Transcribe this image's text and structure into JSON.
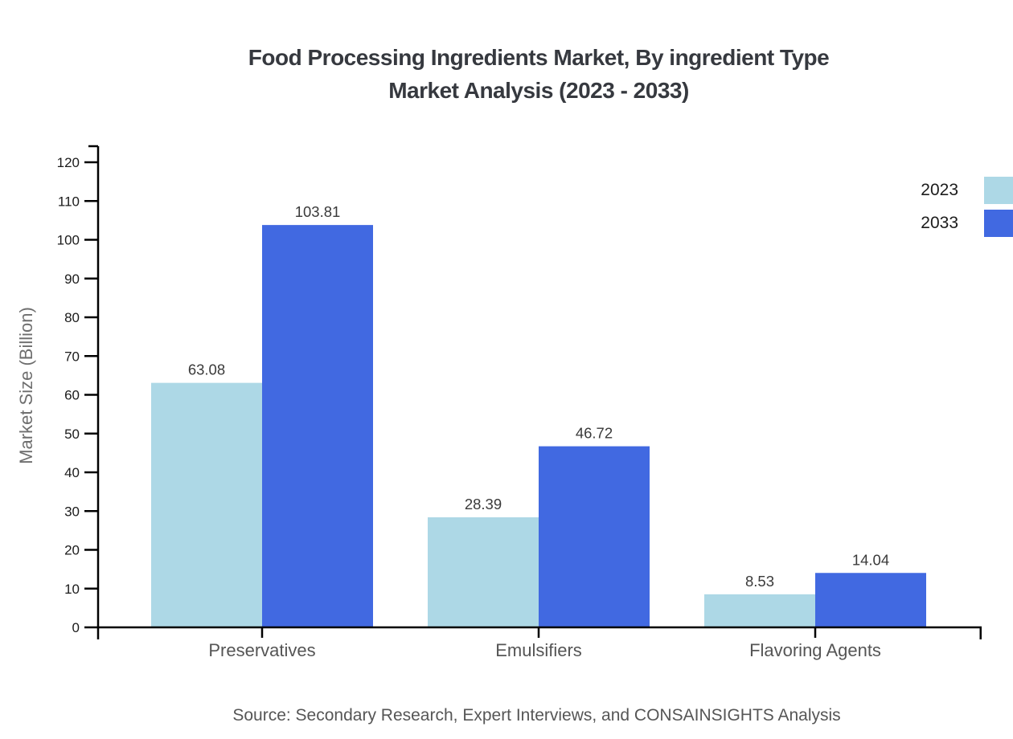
{
  "title": {
    "line1": "Food Processing Ingredients Market, By ingredient Type",
    "line2": "Market Analysis (2023 - 2033)"
  },
  "source": "Source: Secondary Research, Expert Interviews, and CONSAINSIGHTS Analysis",
  "chart_data": {
    "type": "bar",
    "categories": [
      "Preservatives",
      "Emulsifiers",
      "Flavoring Agents"
    ],
    "series": [
      {
        "name": "2023",
        "color": "#ADD8E6",
        "values": [
          63.08,
          28.39,
          8.53
        ]
      },
      {
        "name": "2033",
        "color": "#4169E1",
        "values": [
          103.81,
          46.72,
          14.04
        ]
      }
    ],
    "title": "Food Processing Ingredients Market, By ingredient Type Market Analysis (2023 - 2033)",
    "xlabel": "",
    "ylabel": "Market Size (Billion)",
    "ylim": [
      0,
      120
    ],
    "ytick_step": 10,
    "grid": false,
    "legend_position": "top-right",
    "value_labels": true,
    "axis_color": "#000000",
    "tick_label_color": "#1b1b1b",
    "value_label_color": "#3a3a3a",
    "category_label_color": "#555555"
  }
}
